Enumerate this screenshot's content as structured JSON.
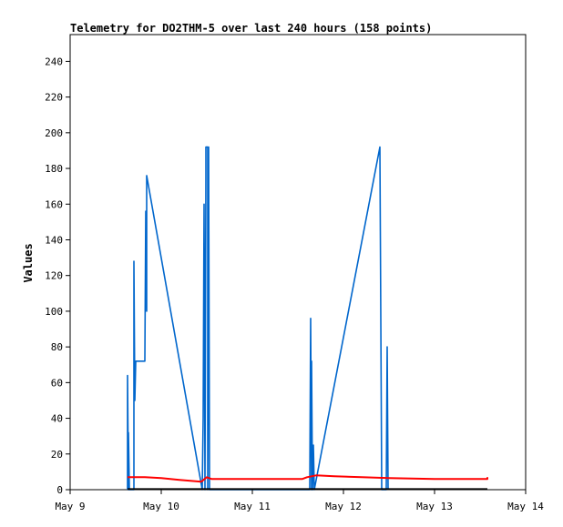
{
  "chart_data": {
    "type": "line",
    "title": "Telemetry for DO2THM-5 over last 240 hours (158 points)",
    "xlabel": "",
    "ylabel": "Values",
    "x_ticks": [
      "May 9",
      "May 10",
      "May 11",
      "May 12",
      "May 13",
      "May 14"
    ],
    "xlim": [
      0,
      5
    ],
    "y_ticks": [
      0,
      20,
      40,
      60,
      80,
      100,
      120,
      140,
      160,
      180,
      200,
      220,
      240
    ],
    "ylim": [
      0,
      255
    ],
    "grid": false,
    "legend": "none",
    "series": [
      {
        "color": "#0066cc",
        "points": [
          [
            0.63,
            0
          ],
          [
            0.63,
            64
          ],
          [
            0.64,
            0
          ],
          [
            0.64,
            32
          ],
          [
            0.65,
            0
          ],
          [
            0.7,
            0
          ],
          [
            0.7,
            128
          ],
          [
            0.71,
            50
          ],
          [
            0.72,
            72
          ],
          [
            0.82,
            72
          ],
          [
            0.83,
            156
          ],
          [
            0.84,
            100
          ],
          [
            0.84,
            176
          ],
          [
            1.45,
            0
          ],
          [
            1.46,
            40
          ],
          [
            1.47,
            160
          ],
          [
            1.48,
            0
          ],
          [
            1.49,
            176
          ],
          [
            1.49,
            192
          ],
          [
            1.51,
            192
          ],
          [
            1.51,
            0
          ],
          [
            1.52,
            192
          ],
          [
            1.53,
            0
          ],
          [
            2.63,
            0
          ],
          [
            2.64,
            96
          ],
          [
            2.65,
            0
          ],
          [
            2.65,
            72
          ],
          [
            2.66,
            0
          ],
          [
            2.67,
            25
          ],
          [
            2.68,
            0
          ],
          [
            3.4,
            192
          ],
          [
            3.41,
            96
          ],
          [
            3.42,
            0
          ],
          [
            3.47,
            0
          ],
          [
            3.48,
            80
          ],
          [
            3.49,
            0
          ]
        ]
      },
      {
        "color": "#ff0000",
        "points": [
          [
            0.63,
            7
          ],
          [
            0.7,
            7
          ],
          [
            0.82,
            7
          ],
          [
            1.0,
            6.5
          ],
          [
            1.2,
            5.5
          ],
          [
            1.44,
            4.5
          ],
          [
            1.5,
            7
          ],
          [
            1.55,
            6
          ],
          [
            2.0,
            6
          ],
          [
            2.4,
            6
          ],
          [
            2.55,
            6
          ],
          [
            2.6,
            7
          ],
          [
            2.65,
            7.5
          ],
          [
            2.7,
            8
          ],
          [
            2.9,
            7.5
          ],
          [
            3.2,
            7
          ],
          [
            3.5,
            6.5
          ],
          [
            4.0,
            6
          ],
          [
            4.58,
            6
          ],
          [
            4.58,
            7
          ]
        ]
      },
      {
        "color": "#000000",
        "points": [
          [
            0.63,
            0.3
          ],
          [
            4.58,
            0.3
          ]
        ]
      }
    ]
  }
}
